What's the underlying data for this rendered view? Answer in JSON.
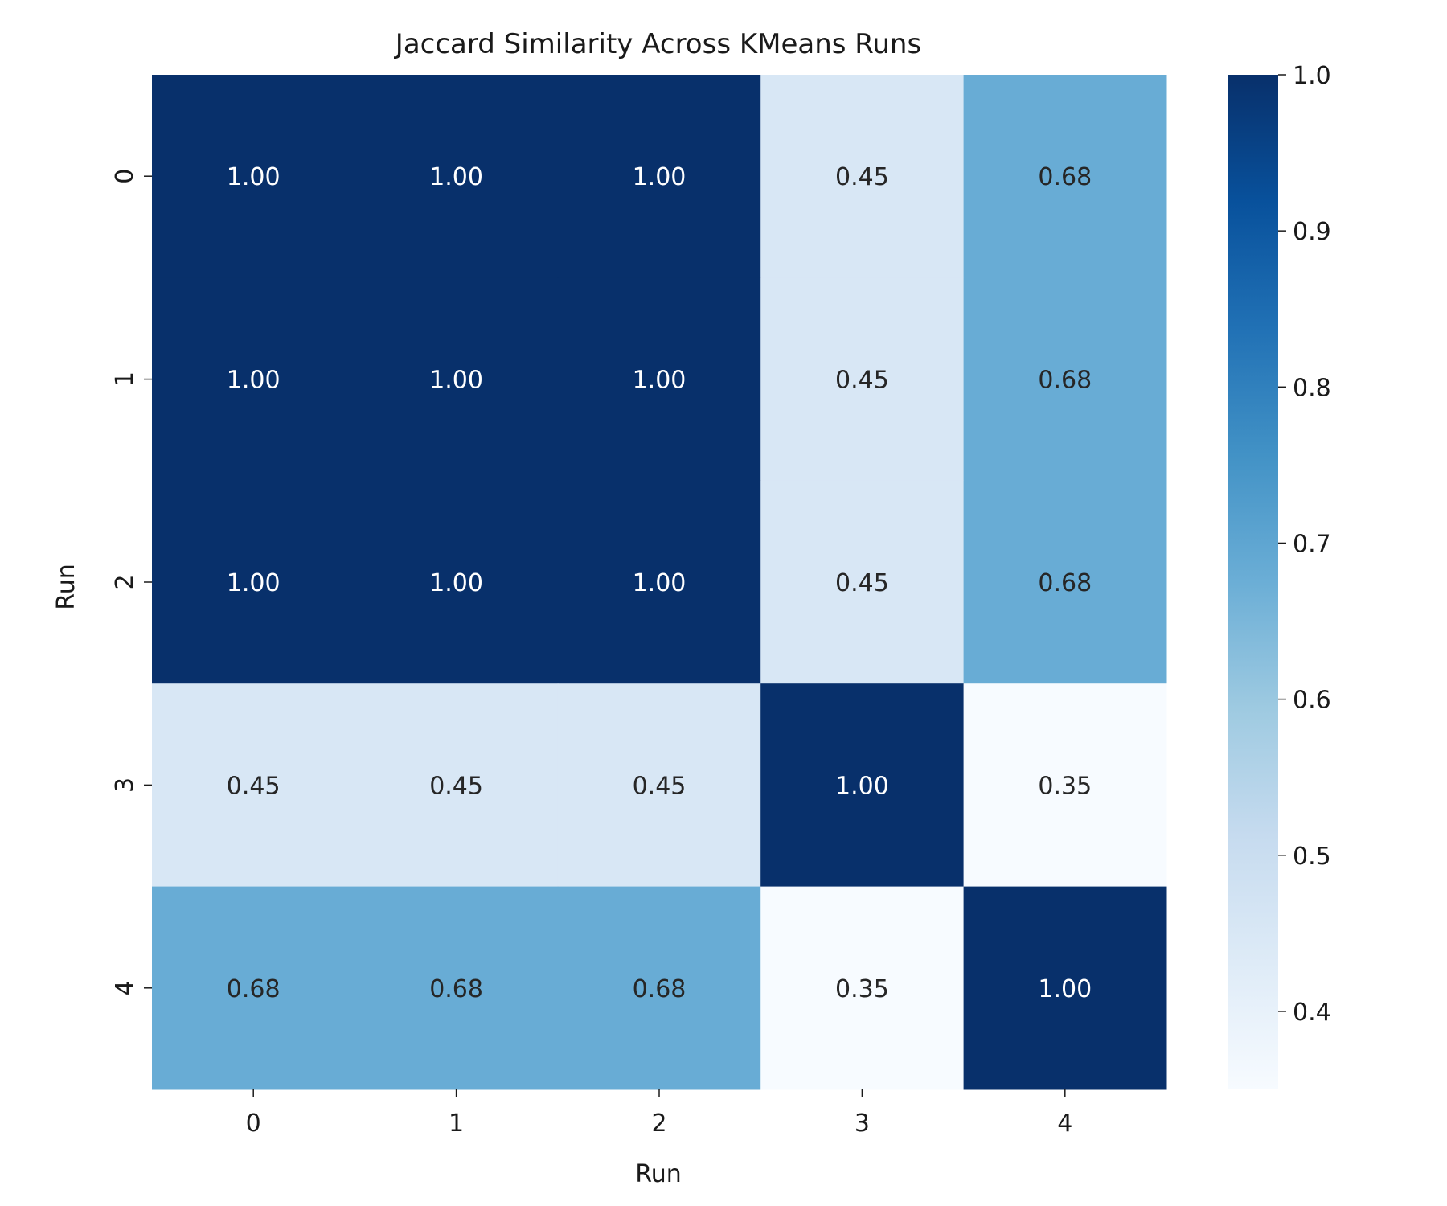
{
  "chart_data": {
    "type": "heatmap",
    "title": "Jaccard Similarity Across KMeans Runs",
    "xlabel": "Run",
    "ylabel": "Run",
    "x_categories": [
      "0",
      "1",
      "2",
      "3",
      "4"
    ],
    "y_categories": [
      "0",
      "1",
      "2",
      "3",
      "4"
    ],
    "values": [
      [
        1.0,
        1.0,
        1.0,
        0.45,
        0.68
      ],
      [
        1.0,
        1.0,
        1.0,
        0.45,
        0.68
      ],
      [
        1.0,
        1.0,
        1.0,
        0.45,
        0.68
      ],
      [
        0.45,
        0.45,
        0.45,
        1.0,
        0.35
      ],
      [
        0.68,
        0.68,
        0.68,
        0.35,
        1.0
      ]
    ],
    "value_format": "0.00",
    "colormap": "Blues",
    "colorbar": {
      "range": [
        0.35,
        1.0
      ],
      "ticks": [
        0.4,
        0.5,
        0.6,
        0.7,
        0.8,
        0.9,
        1.0
      ],
      "tick_labels": [
        "0.4",
        "0.5",
        "0.6",
        "0.7",
        "0.8",
        "0.9",
        "1.0"
      ]
    },
    "grid": false
  }
}
